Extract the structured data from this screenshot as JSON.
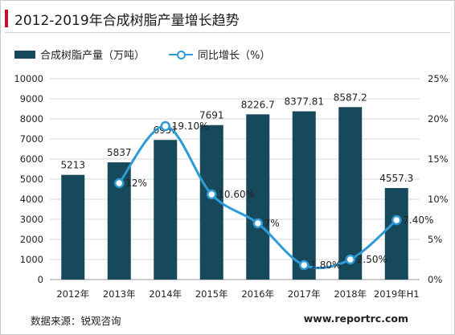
{
  "title": "2012-2019年合成树脂产量增长趋势",
  "legend": {
    "bar_label": "合成树脂产量（万吨）",
    "line_label": "同比增长（%）"
  },
  "colors": {
    "bar": "#17495c",
    "line": "#2e9bd6",
    "accent": "#c8102e",
    "grid": "#d9d9d9"
  },
  "source": "数据来源：锐观咨询",
  "website": "www.reportrc.com",
  "chart_data": {
    "type": "bar",
    "categories": [
      "2012年",
      "2013年",
      "2014年",
      "2015年",
      "2016年",
      "2017年",
      "2018年",
      "2019年H1"
    ],
    "series": [
      {
        "name": "合成树脂产量（万吨）",
        "type": "bar",
        "axis": "left",
        "values": [
          5213,
          5837,
          6951,
          7691,
          8226.7,
          8377.81,
          8587.2,
          4557.3
        ],
        "labels": [
          "5213",
          "5837",
          "6951",
          "7691",
          "8226.7",
          "8377.81",
          "8587.2",
          "4557.3"
        ]
      },
      {
        "name": "同比增长（%）",
        "type": "line",
        "axis": "right",
        "values": [
          null,
          12,
          19.1,
          10.6,
          7,
          1.8,
          2.5,
          7.4
        ],
        "labels": [
          "",
          "12%",
          "19.10%",
          "10.60%",
          "7%",
          "1.80%",
          "2.50%",
          "7.40%"
        ]
      }
    ],
    "y_left": {
      "min": 0,
      "max": 10000,
      "step": 1000,
      "ticks": [
        "0",
        "1000",
        "2000",
        "3000",
        "4000",
        "5000",
        "6000",
        "7000",
        "8000",
        "9000",
        "10000"
      ]
    },
    "y_right": {
      "min": 0,
      "max": 25,
      "step": 5,
      "ticks": [
        "0%",
        "5%",
        "10%",
        "15%",
        "20%",
        "25%"
      ]
    },
    "grid": true,
    "legend_position": "top-left"
  }
}
